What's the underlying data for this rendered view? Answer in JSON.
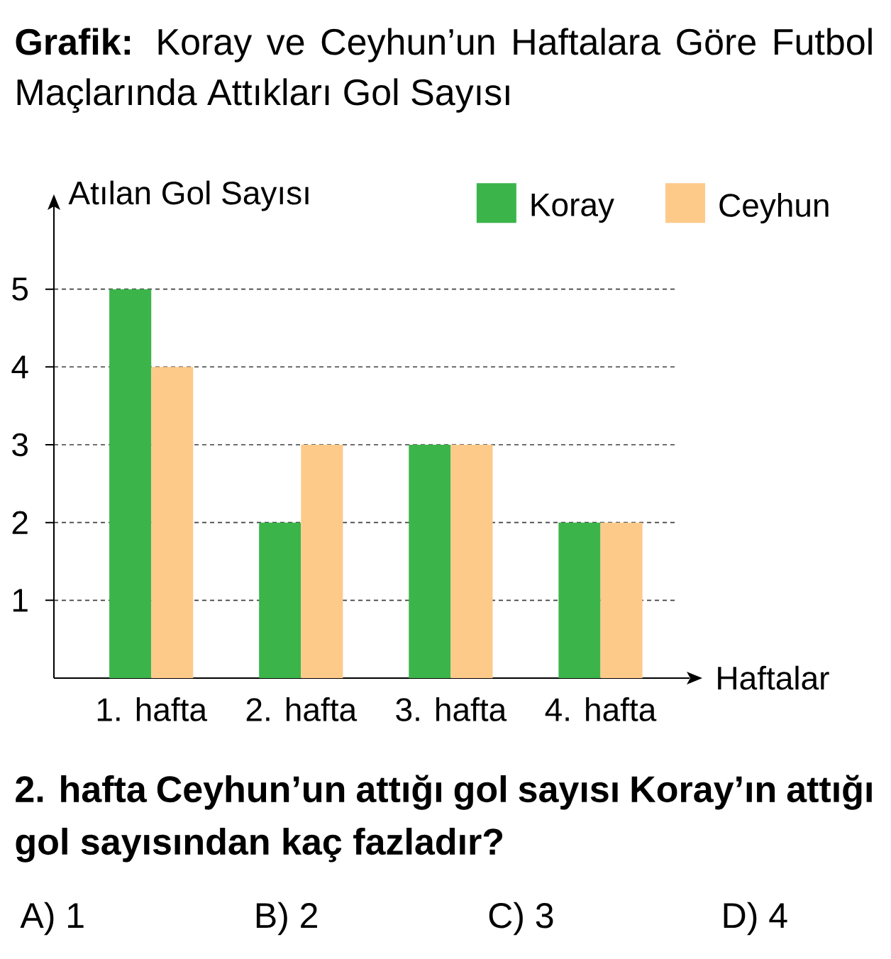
{
  "chart_data": {
    "type": "bar",
    "title": "**Grafik:** Koray ve Ceyhun’un Haftalara Göre Futbol Maçlarında Attıkları Gol Sayısı",
    "xlabel": "Haftalar",
    "ylabel": "Atılan Gol Sayısı",
    "categories": [
      "1. hafta",
      "2. hafta",
      "3. hafta",
      "4. hafta"
    ],
    "series": [
      {
        "name": "Koray",
        "color": "#3bb54a",
        "values": [
          5,
          2,
          3,
          2
        ]
      },
      {
        "name": "Ceyhun",
        "color": "#fdca8a",
        "values": [
          4,
          3,
          3,
          2
        ]
      }
    ],
    "ylim": [
      0,
      6.2
    ],
    "yticks": [
      1,
      2,
      3,
      4,
      5
    ],
    "grid": "y",
    "legend": "top right",
    "annotations": [
      "2. hafta Ceyhun’un attığı gol sayısı Koray’ın attığı gol sayısından kaç fazladır?",
      "A) 1",
      "B) 2",
      "C) 3",
      "D) 4"
    ]
  }
}
